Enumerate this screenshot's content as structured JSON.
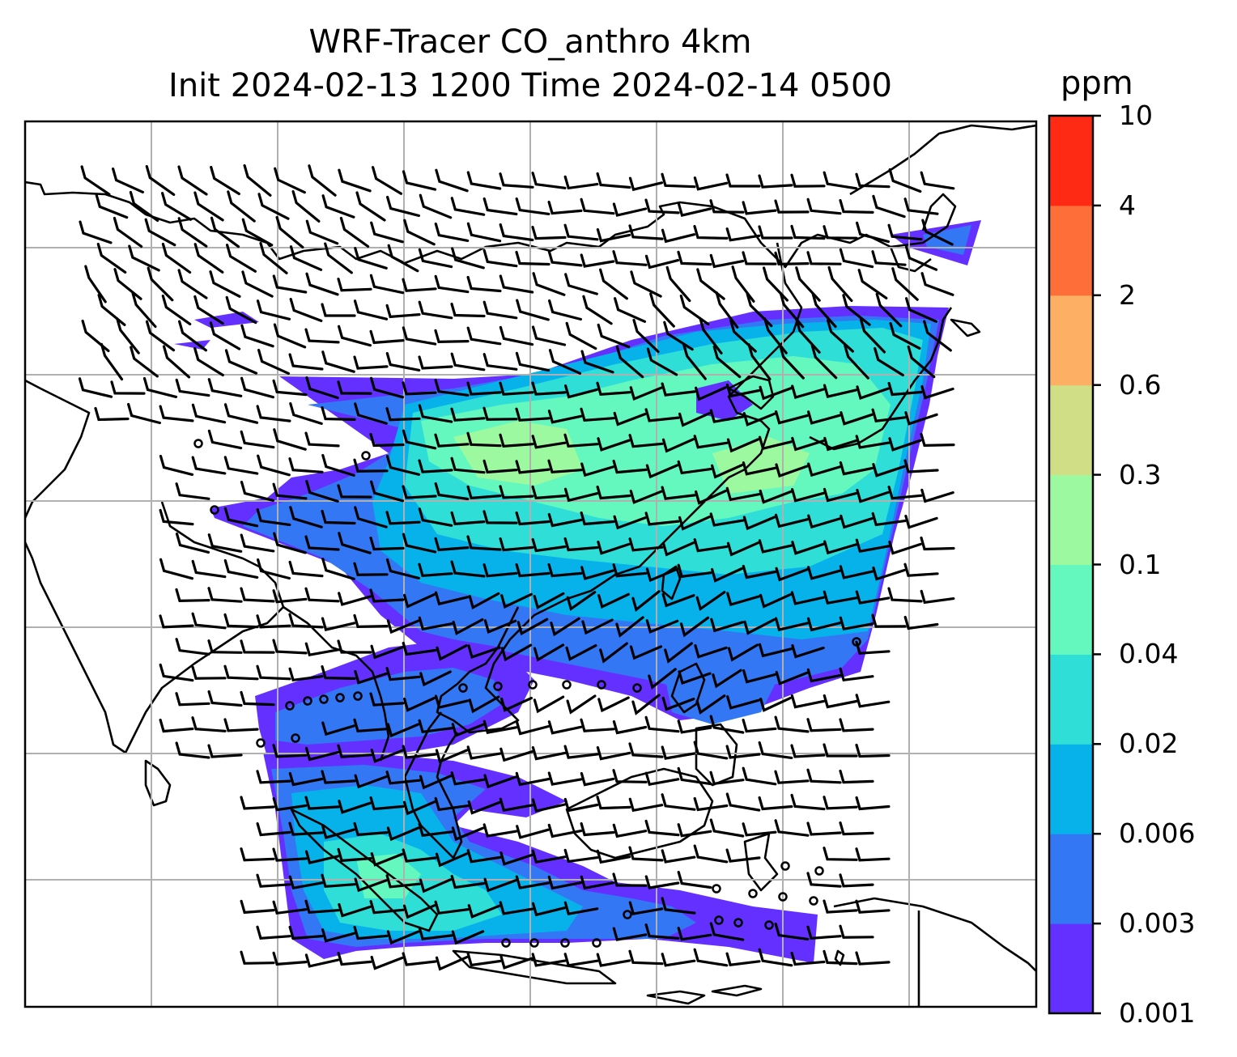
{
  "title": {
    "line1": "WRF-Tracer CO_anthro 4km",
    "line2": "Init 2024-02-13 1200 Time 2024-02-14 0500"
  },
  "colorbar": {
    "unit": "ppm",
    "ticks": [
      "10",
      "4",
      "2",
      "0.6",
      "0.3",
      "0.1",
      "0.04",
      "0.02",
      "0.006",
      "0.003",
      "0.001"
    ],
    "colors": [
      "#6430ff",
      "#3377f5",
      "#07b1ea",
      "#2fdfd7",
      "#64f8bf",
      "#9df99f",
      "#d0de85",
      "#fdb063",
      "#fe6e39",
      "#ff2a14"
    ]
  },
  "map": {
    "gridlines": true,
    "overlays": [
      "coastlines",
      "wind-barbs",
      "co-tracer-contours"
    ]
  }
}
